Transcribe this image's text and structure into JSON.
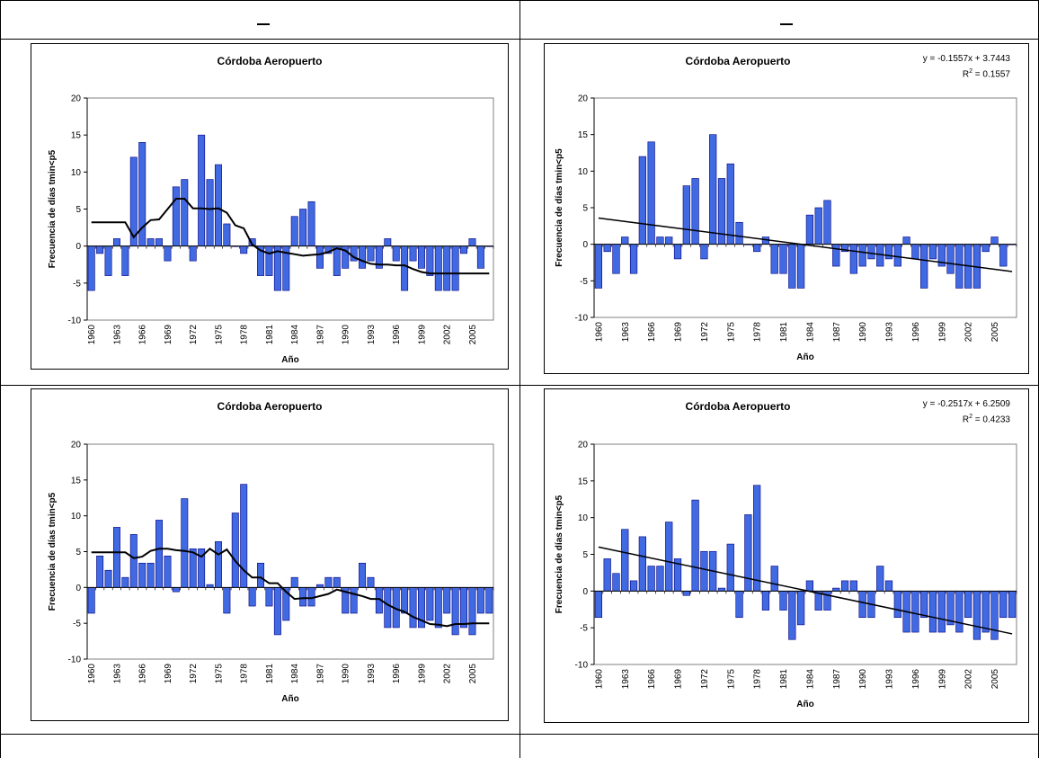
{
  "chart_data": [
    {
      "type": "bar",
      "title": "Córdoba Aeropuerto",
      "xlabel": "Año",
      "ylabel": "Frecuencia de días tmin<p5",
      "ylim": [
        -10,
        20
      ],
      "yticks": [
        -10,
        -5,
        0,
        5,
        10,
        15,
        20
      ],
      "x_start": 1960,
      "x_tick_labels": [
        "1960",
        "1963",
        "1966",
        "1969",
        "1972",
        "1975",
        "1978",
        "1981",
        "1984",
        "1987",
        "1990",
        "1993",
        "1996",
        "1999",
        "2002",
        "2005"
      ],
      "grid": false,
      "overlay": "moving-average",
      "values": [
        -6,
        -1,
        -4,
        1,
        -4,
        12,
        14,
        1,
        1,
        -2,
        8,
        9,
        -2,
        15,
        9,
        11,
        3,
        0,
        -1,
        1,
        -4,
        -4,
        -6,
        -6,
        4,
        5,
        6,
        -3,
        -1,
        -4,
        -3,
        -2,
        -3,
        -2,
        -3,
        1,
        -2,
        -6,
        -2,
        -3,
        -4,
        -6,
        -6,
        -6,
        -1,
        1,
        -3,
        0
      ],
      "smooth": [
        3.2,
        3.2,
        3.2,
        3.2,
        3.2,
        1.2,
        2.5,
        3.5,
        3.6,
        5,
        6.4,
        6.4,
        5.1,
        5.1,
        5,
        5.1,
        4.5,
        2.8,
        2.4,
        0.2,
        -0.6,
        -1,
        -0.7,
        -0.9,
        -1.1,
        -1.3,
        -1.2,
        -1.1,
        -0.8,
        -0.3,
        -0.6,
        -1.5,
        -2,
        -2.4,
        -2.5,
        -2.5,
        -2.6,
        -2.6,
        -3.1,
        -3.5,
        -3.7,
        -3.7,
        -3.7,
        -3.7,
        -3.7,
        -3.7,
        -3.7,
        -3.7
      ]
    },
    {
      "type": "bar",
      "title": "Córdoba Aeropuerto",
      "xlabel": "Año",
      "ylabel": "Frecuencia de días tmin<p5",
      "ylim": [
        -10,
        20
      ],
      "yticks": [
        -10,
        -5,
        0,
        5,
        10,
        15,
        20
      ],
      "x_start": 1960,
      "x_tick_labels": [
        "1960",
        "1963",
        "1966",
        "1969",
        "1972",
        "1975",
        "1978",
        "1981",
        "1984",
        "1987",
        "1990",
        "1993",
        "1996",
        "1999",
        "2002",
        "2005"
      ],
      "grid": false,
      "overlay": "linear-trend",
      "equation": "y = -0.1557x + 3.7443",
      "r2_label": "R",
      "r2_value": " = 0.1557",
      "trend": {
        "slope": -0.1557,
        "intercept": 3.7443
      },
      "values": [
        -6,
        -1,
        -4,
        1,
        -4,
        12,
        14,
        1,
        1,
        -2,
        8,
        9,
        -2,
        15,
        9,
        11,
        3,
        0,
        -1,
        1,
        -4,
        -4,
        -6,
        -6,
        4,
        5,
        6,
        -3,
        -1,
        -4,
        -3,
        -2,
        -3,
        -2,
        -3,
        1,
        -2,
        -6,
        -2,
        -3,
        -4,
        -6,
        -6,
        -6,
        -1,
        1,
        -3,
        0
      ]
    },
    {
      "type": "bar",
      "title": "Córdoba Aeropuerto",
      "xlabel": "Año",
      "ylabel": "Frecuencia de días tmin<p5",
      "ylim": [
        -10,
        20
      ],
      "yticks": [
        -10,
        -5,
        0,
        5,
        10,
        15,
        20
      ],
      "x_start": 1960,
      "x_tick_labels": [
        "1960",
        "1963",
        "1966",
        "1969",
        "1972",
        "1975",
        "1978",
        "1981",
        "1984",
        "1987",
        "1990",
        "1993",
        "1996",
        "1999",
        "2002",
        "2005"
      ],
      "grid": false,
      "overlay": "moving-average",
      "values": [
        -3.6,
        4.4,
        2.4,
        8.4,
        1.4,
        7.4,
        3.4,
        3.4,
        9.4,
        4.4,
        -0.6,
        12.4,
        5.4,
        5.4,
        0.4,
        6.4,
        -3.6,
        10.4,
        14.4,
        -2.6,
        3.4,
        -2.6,
        -6.6,
        -4.6,
        1.4,
        -2.6,
        -2.6,
        0.4,
        1.4,
        1.4,
        -3.6,
        -3.6,
        3.4,
        1.4,
        -3.6,
        -5.6,
        -5.6,
        -3.6,
        -5.6,
        -5.6,
        -4.6,
        -5.6,
        -3.6,
        -6.6,
        -5.6,
        -6.6,
        -3.6,
        -3.6
      ],
      "smooth": [
        4.9,
        4.9,
        4.9,
        4.9,
        4.9,
        4.1,
        4.3,
        5.1,
        5.4,
        5.4,
        5.2,
        5.1,
        4.9,
        4.3,
        5.4,
        4.6,
        5.3,
        3.7,
        2.4,
        1.4,
        1.4,
        0.6,
        0.6,
        -0.6,
        -1.6,
        -1.5,
        -1.5,
        -1.2,
        -0.9,
        -0.3,
        -0.6,
        -0.9,
        -1.2,
        -1.6,
        -1.6,
        -2.4,
        -3,
        -3.4,
        -4.1,
        -4.6,
        -5.1,
        -5.2,
        -5.4,
        -5.1,
        -5.1,
        -5,
        -5,
        -5
      ]
    },
    {
      "type": "bar",
      "title": "Córdoba Aeropuerto",
      "xlabel": "Año",
      "ylabel": "Frecuencia de días tmin<p5",
      "ylim": [
        -10,
        20
      ],
      "yticks": [
        -10,
        -5,
        0,
        5,
        10,
        15,
        20
      ],
      "x_start": 1960,
      "x_tick_labels": [
        "1960",
        "1963",
        "1966",
        "1969",
        "1972",
        "1975",
        "1978",
        "1981",
        "1984",
        "1987",
        "1990",
        "1993",
        "1996",
        "1999",
        "2002",
        "2005"
      ],
      "grid": false,
      "overlay": "linear-trend",
      "equation": "y = -0.2517x + 6.2509",
      "r2_label": "R",
      "r2_value": " = 0.4233",
      "trend": {
        "slope": -0.2517,
        "intercept": 6.2509
      },
      "values": [
        -3.6,
        4.4,
        2.4,
        8.4,
        1.4,
        7.4,
        3.4,
        3.4,
        9.4,
        4.4,
        -0.6,
        12.4,
        5.4,
        5.4,
        0.4,
        6.4,
        -3.6,
        10.4,
        14.4,
        -2.6,
        3.4,
        -2.6,
        -6.6,
        -4.6,
        1.4,
        -2.6,
        -2.6,
        0.4,
        1.4,
        1.4,
        -3.6,
        -3.6,
        3.4,
        1.4,
        -3.6,
        -5.6,
        -5.6,
        -3.6,
        -5.6,
        -5.6,
        -4.6,
        -5.6,
        -3.6,
        -6.6,
        -5.6,
        -6.6,
        -3.6,
        -3.6
      ]
    }
  ],
  "colors": {
    "bar_fill": "#4169e1",
    "bar_stroke": "#000080",
    "line": "#000000"
  }
}
